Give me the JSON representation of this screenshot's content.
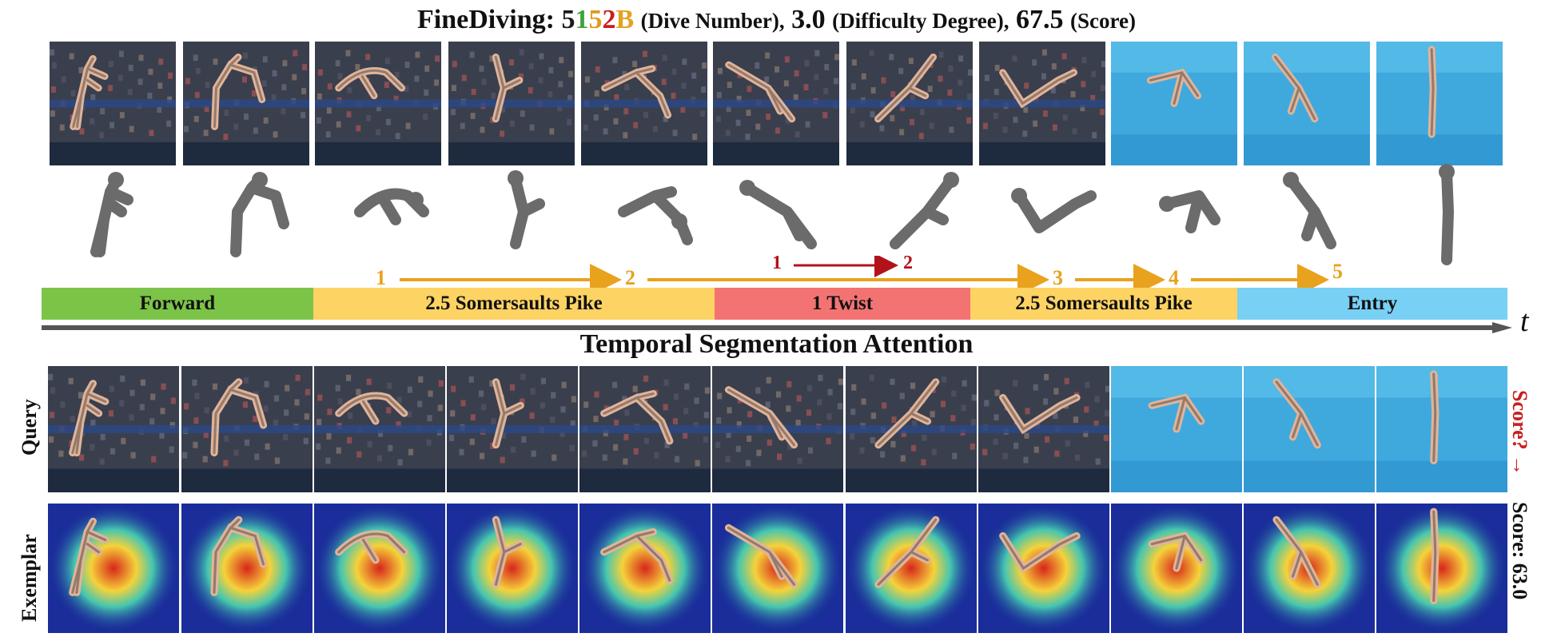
{
  "title": {
    "dataset": "FineDiving:",
    "dive_chars": [
      {
        "ch": "5",
        "color": "#1b1b1b"
      },
      {
        "ch": "1",
        "color": "#3da33a"
      },
      {
        "ch": "5",
        "color": "#e09a1b"
      },
      {
        "ch": "2",
        "color": "#c81e1e"
      },
      {
        "ch": "B",
        "color": "#e5a21f"
      }
    ],
    "dive_label": "(Dive Number),",
    "difficulty": "3.0",
    "difficulty_label": "(Difficulty Degree),",
    "score": "67.5",
    "score_label": "(Score)"
  },
  "sequence_numbers": {
    "somersault": [
      "1",
      "2",
      "3",
      "4",
      "5"
    ],
    "twist": [
      "1",
      "2"
    ],
    "somersault_color": "#e8a21d",
    "twist_color": "#b3121b"
  },
  "phases": [
    {
      "label": "Forward",
      "color": "#7cc448"
    },
    {
      "label": "2.5 Somersaults Pike",
      "color": "#fdd364"
    },
    {
      "label": "1 Twist",
      "color": "#f37373"
    },
    {
      "label": "2.5 Somersaults Pike",
      "color": "#fdd364"
    },
    {
      "label": "Entry",
      "color": "#79d0f5"
    }
  ],
  "time_axis_label": "t",
  "subtitle": "Temporal Segmentation Attention",
  "rows": {
    "query_label": "Query",
    "exemplar_label": "Exemplar"
  },
  "right_labels": {
    "query_score": "Score?",
    "query_arrow": "→",
    "exemplar_score": "Score: 63.0"
  },
  "colors": {
    "pool_blue": "#3fa9de",
    "stand_dark": "#3a3f4d",
    "silhouette": "#6b6b6b",
    "heat_bg": "#1a2d9a"
  }
}
